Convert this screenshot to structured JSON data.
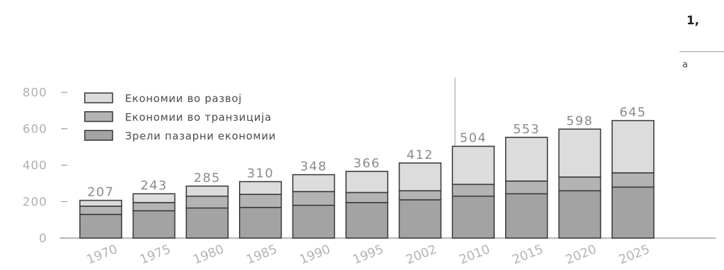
{
  "corner": {
    "mark": "1,",
    "letter": "a"
  },
  "chart_data": {
    "type": "bar",
    "stacked": true,
    "categories": [
      "1970",
      "1975",
      "1980",
      "1985",
      "1990",
      "1995",
      "2002",
      "2010",
      "2015",
      "2020",
      "2025"
    ],
    "totals": [
      207,
      243,
      285,
      310,
      348,
      366,
      412,
      504,
      553,
      598,
      645
    ],
    "series": [
      {
        "name": "Зрели пазарни економии",
        "values": [
          130,
          150,
          165,
          168,
          180,
          195,
          210,
          230,
          243,
          260,
          280
        ],
        "color": "#a3a3a3"
      },
      {
        "name": "Економии во транзиција",
        "values": [
          45,
          45,
          65,
          72,
          75,
          55,
          50,
          65,
          70,
          75,
          78
        ],
        "color": "#b3b3b3"
      },
      {
        "name": "Економии во развој",
        "values": [
          32,
          48,
          55,
          70,
          93,
          116,
          152,
          209,
          240,
          263,
          287
        ],
        "color": "#dcdcdc"
      }
    ],
    "legend_order": [
      "Економии во развој",
      "Економии во транзиција",
      "Зрели пазарни економии"
    ],
    "legend_position": "top-left",
    "yticks": [
      0,
      200,
      400,
      600,
      800
    ],
    "ylim": [
      0,
      800
    ],
    "grid": false,
    "separator_after": "2002"
  }
}
